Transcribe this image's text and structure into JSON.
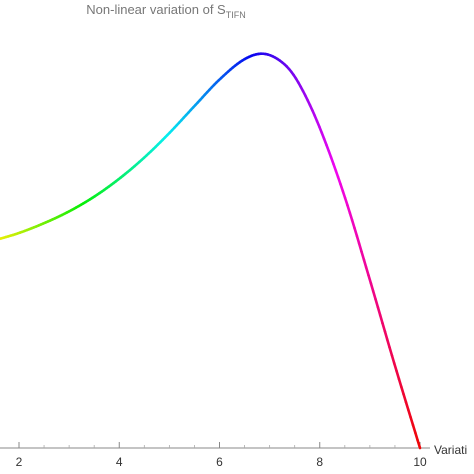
{
  "chart_data": {
    "type": "line",
    "title": {
      "main": "Non-linear variation of S",
      "subscript": "TIFN"
    },
    "xlabel": "Variati",
    "ylabel": "",
    "xlim": [
      1.6,
      10.4
    ],
    "ylim": [
      0.0,
      1.0
    ],
    "x_ticks": [
      2,
      4,
      6,
      8,
      10
    ],
    "grid": false,
    "legend": "none",
    "colormap": "hue",
    "series": [
      {
        "x": [
          1.6,
          2.0,
          2.5,
          3.0,
          3.5,
          4.0,
          4.5,
          5.0,
          5.5,
          6.0,
          6.5,
          6.9,
          7.3,
          7.6,
          8.0,
          8.5,
          9.0,
          9.5,
          10.0
        ],
        "y": [
          0.512,
          0.527,
          0.551,
          0.58,
          0.616,
          0.66,
          0.712,
          0.772,
          0.838,
          0.903,
          0.953,
          0.966,
          0.94,
          0.89,
          0.785,
          0.615,
          0.412,
          0.202,
          0.0
        ]
      }
    ]
  }
}
